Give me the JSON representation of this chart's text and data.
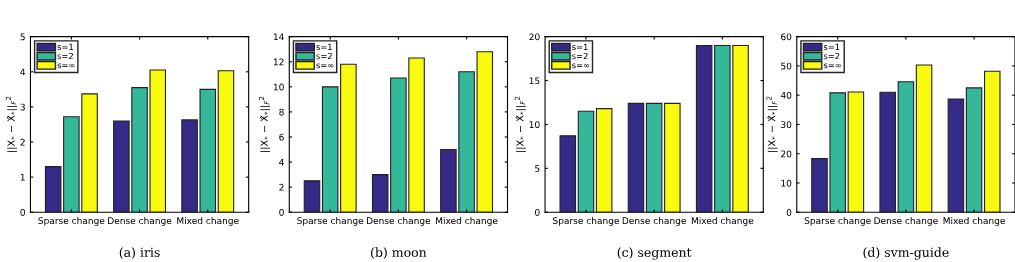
{
  "chart_data": [
    {
      "type": "bar",
      "title": "(a) iris",
      "ylabel": "||X$_{*}$ − X̂$_{*}$||$_{F}$$^{2}$",
      "categories": [
        "Sparse change",
        "Dense change",
        "Mixed change"
      ],
      "ylim": [
        0,
        5
      ],
      "yticks": [
        0,
        1,
        2,
        3,
        4,
        5
      ],
      "legend": "top left",
      "grid": false,
      "series": [
        {
          "name": "s=1",
          "color": "#352a87",
          "values": [
            1.3,
            2.6,
            2.63
          ]
        },
        {
          "name": "s=2",
          "color": "#35b89a",
          "values": [
            2.72,
            3.55,
            3.5
          ]
        },
        {
          "name": "s=∞",
          "color": "#f9fb0e",
          "values": [
            3.37,
            4.05,
            4.03
          ]
        }
      ]
    },
    {
      "type": "bar",
      "title": "(b) moon",
      "ylabel": "||X$_{*}$ − X̂$_{*}$||$_{F}$$^{2}$",
      "categories": [
        "Sparse change",
        "Dense change",
        "Mixed change"
      ],
      "ylim": [
        0,
        14
      ],
      "yticks": [
        0,
        2,
        4,
        6,
        8,
        10,
        12,
        14
      ],
      "legend": "top left",
      "grid": false,
      "series": [
        {
          "name": "s=1",
          "color": "#352a87",
          "values": [
            2.5,
            3.0,
            5.0
          ]
        },
        {
          "name": "s=2",
          "color": "#35b89a",
          "values": [
            10.0,
            10.7,
            11.2
          ]
        },
        {
          "name": "s=∞",
          "color": "#f9fb0e",
          "values": [
            11.8,
            12.3,
            12.8
          ]
        }
      ]
    },
    {
      "type": "bar",
      "title": "(c) segment",
      "ylabel": "||X$_{*}$ − X̂$_{*}$||$_{F}$$^{2}$",
      "categories": [
        "Sparse change",
        "Dense change",
        "Mixed change"
      ],
      "ylim": [
        0,
        20
      ],
      "yticks": [
        0,
        5,
        10,
        15,
        20
      ],
      "legend": "top left",
      "grid": false,
      "series": [
        {
          "name": "s=1",
          "color": "#352a87",
          "values": [
            8.7,
            12.4,
            19.0
          ]
        },
        {
          "name": "s=2",
          "color": "#35b89a",
          "values": [
            11.5,
            12.4,
            19.0
          ]
        },
        {
          "name": "s=∞",
          "color": "#f9fb0e",
          "values": [
            11.8,
            12.4,
            19.0
          ]
        }
      ]
    },
    {
      "type": "bar",
      "title": "(d) svm-guide",
      "ylabel": "||X$_{*}$ − X̂$_{*}$||$_{F}$$^{2}$",
      "categories": [
        "Sparse change",
        "Dense change",
        "Mixed change"
      ],
      "ylim": [
        0,
        60
      ],
      "yticks": [
        0,
        10,
        20,
        30,
        40,
        50,
        60
      ],
      "legend": "top left",
      "grid": false,
      "series": [
        {
          "name": "s=1",
          "color": "#352a87",
          "values": [
            18.3,
            41.0,
            38.7
          ]
        },
        {
          "name": "s=2",
          "color": "#35b89a",
          "values": [
            40.8,
            44.6,
            42.5
          ]
        },
        {
          "name": "s=∞",
          "color": "#f9fb0e",
          "values": [
            41.1,
            50.3,
            48.2
          ]
        }
      ]
    }
  ]
}
